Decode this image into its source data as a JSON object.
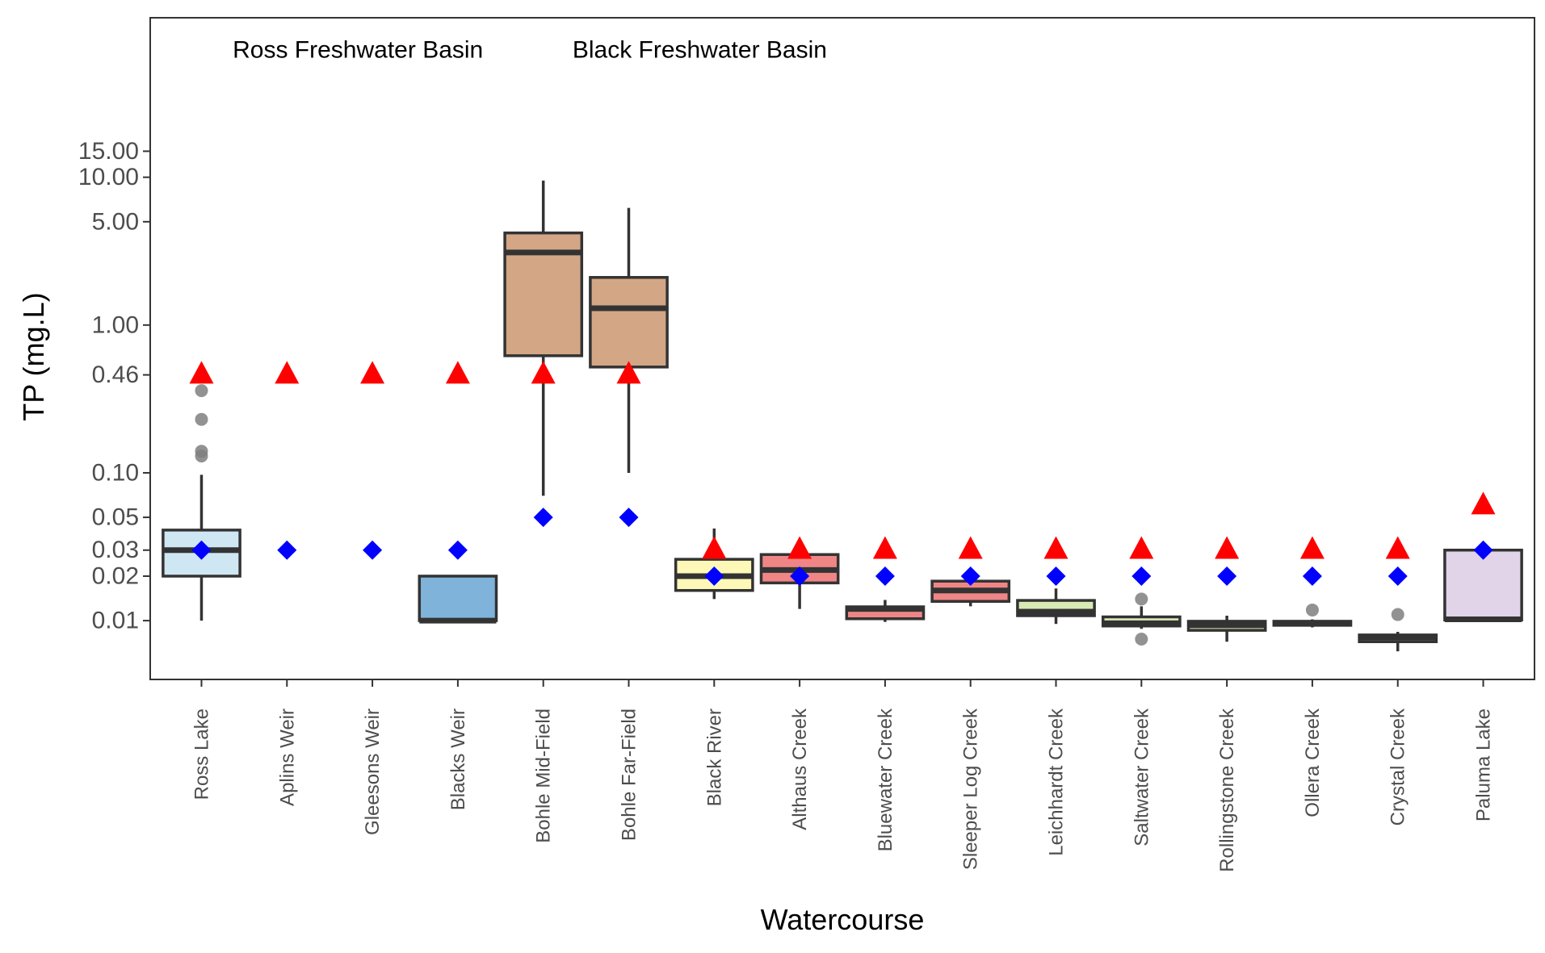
{
  "chart_data": {
    "type": "box",
    "xlabel": "Watercourse",
    "ylabel": "TP (mg.L)",
    "y_scale": "log",
    "ylim": [
      0.004,
      120
    ],
    "y_ticks": [
      {
        "value": 0.01,
        "label": "0.01"
      },
      {
        "value": 0.02,
        "label": "0.02"
      },
      {
        "value": 0.03,
        "label": "0.03"
      },
      {
        "value": 0.05,
        "label": "0.05"
      },
      {
        "value": 0.1,
        "label": "0.10"
      },
      {
        "value": 0.46,
        "label": "0.46"
      },
      {
        "value": 1,
        "label": "1.00"
      },
      {
        "value": 5,
        "label": "5.00"
      },
      {
        "value": 10,
        "label": "10.00"
      },
      {
        "value": 15,
        "label": "15.00"
      }
    ],
    "annotations": [
      {
        "text": "Ross Freshwater Basin",
        "x_between": [
          "Aplins Weir",
          "Gleesons Weir"
        ]
      },
      {
        "text": "Black Freshwater Basin",
        "x_between": [
          "Bohle Far-Field",
          "Black River"
        ]
      }
    ],
    "legend": "none",
    "grid": false,
    "categories": [
      {
        "name": "Ross Lake",
        "fill": "#cfe6f3",
        "box": {
          "whisker_low": 0.01,
          "q1": 0.02,
          "median": 0.03,
          "q3": 0.041,
          "whisker_high": 0.097
        },
        "outliers": [
          0.13,
          0.14,
          0.23,
          0.36
        ],
        "guideline": 0.46,
        "diamond": 0.03
      },
      {
        "name": "Aplins Weir",
        "fill": null,
        "box": null,
        "outliers": [],
        "guideline": 0.46,
        "diamond": 0.03
      },
      {
        "name": "Gleesons Weir",
        "fill": null,
        "box": null,
        "outliers": [],
        "guideline": 0.46,
        "diamond": 0.03
      },
      {
        "name": "Blacks Weir",
        "fill": "#7fb3d9",
        "box": {
          "whisker_low": 0.01,
          "q1": 0.01,
          "median": 0.01,
          "q3": 0.02,
          "whisker_high": 0.02
        },
        "outliers": [],
        "guideline": 0.46,
        "diamond": 0.03
      },
      {
        "name": "Bohle Mid-Field",
        "fill": "#d3a686",
        "box": {
          "whisker_low": 0.07,
          "q1": 0.62,
          "median": 3.1,
          "q3": 4.2,
          "whisker_high": 9.5
        },
        "outliers": [],
        "guideline": 0.46,
        "diamond": 0.05
      },
      {
        "name": "Bohle Far-Field",
        "fill": "#d3a686",
        "box": {
          "whisker_low": 0.1,
          "q1": 0.52,
          "median": 1.3,
          "q3": 2.1,
          "whisker_high": 6.2
        },
        "outliers": [],
        "guideline": 0.46,
        "diamond": 0.05
      },
      {
        "name": "Black River",
        "fill": "#fdf8b7",
        "box": {
          "whisker_low": 0.014,
          "q1": 0.016,
          "median": 0.02,
          "q3": 0.026,
          "whisker_high": 0.042
        },
        "outliers": [],
        "guideline": 0.03,
        "diamond": 0.02
      },
      {
        "name": "Althaus Creek",
        "fill": "#f08586",
        "box": {
          "whisker_low": 0.012,
          "q1": 0.018,
          "median": 0.022,
          "q3": 0.028,
          "whisker_high": 0.031
        },
        "outliers": [],
        "guideline": 0.03,
        "diamond": 0.02
      },
      {
        "name": "Bluewater Creek",
        "fill": "#f08586",
        "box": {
          "whisker_low": 0.0098,
          "q1": 0.0103,
          "median": 0.012,
          "q3": 0.0124,
          "whisker_high": 0.0138
        },
        "outliers": [],
        "guideline": 0.03,
        "diamond": 0.02
      },
      {
        "name": "Sleeper Log Creek",
        "fill": "#f08586",
        "box": {
          "whisker_low": 0.0125,
          "q1": 0.0135,
          "median": 0.016,
          "q3": 0.0185,
          "whisker_high": 0.02
        },
        "outliers": [],
        "guideline": 0.03,
        "diamond": 0.02
      },
      {
        "name": "Leichhardt Creek",
        "fill": "#d8ebb5",
        "box": {
          "whisker_low": 0.0095,
          "q1": 0.0108,
          "median": 0.0115,
          "q3": 0.0137,
          "whisker_high": 0.0165
        },
        "outliers": [],
        "guideline": 0.03,
        "diamond": 0.02
      },
      {
        "name": "Saltwater Creek",
        "fill": "#d8ebb5",
        "box": {
          "whisker_low": 0.0088,
          "q1": 0.0092,
          "median": 0.0096,
          "q3": 0.0106,
          "whisker_high": 0.0125
        },
        "outliers": [
          0.0075,
          0.014
        ],
        "guideline": 0.03,
        "diamond": 0.02
      },
      {
        "name": "Rollingstone Creek",
        "fill": "#d8ebb5",
        "box": {
          "whisker_low": 0.0072,
          "q1": 0.0086,
          "median": 0.0093,
          "q3": 0.0099,
          "whisker_high": 0.0108
        },
        "outliers": [],
        "guideline": 0.03,
        "diamond": 0.02
      },
      {
        "name": "Ollera Creek",
        "fill": "#d8ebb5",
        "box": {
          "whisker_low": 0.009,
          "q1": 0.0093,
          "median": 0.0096,
          "q3": 0.0099,
          "whisker_high": 0.0102
        },
        "outliers": [
          0.0118
        ],
        "guideline": 0.03,
        "diamond": 0.02
      },
      {
        "name": "Crystal Creek",
        "fill": "#95cc7a",
        "box": {
          "whisker_low": 0.0062,
          "q1": 0.0072,
          "median": 0.0077,
          "q3": 0.008,
          "whisker_high": 0.0084
        },
        "outliers": [
          0.011
        ],
        "guideline": 0.03,
        "diamond": 0.02
      },
      {
        "name": "Paluma Lake",
        "fill": "#e1d3e8",
        "box": {
          "whisker_low": 0.0101,
          "q1": 0.0101,
          "median": 0.0102,
          "q3": 0.03,
          "whisker_high": 0.032
        },
        "outliers": [],
        "guideline": 0.06,
        "diamond": 0.03
      }
    ],
    "colors": {
      "guideline_marker": "#ff0000",
      "diamond_marker": "#0000ff",
      "outlier_marker": "#7f7f7f",
      "box_stroke": "#333333",
      "panel_border": "#333333"
    }
  }
}
